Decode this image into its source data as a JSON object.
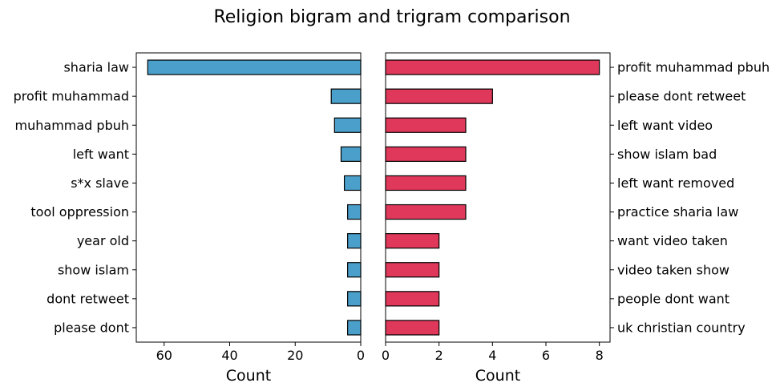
{
  "figure": {
    "title": "Religion bigram and trigram comparison"
  },
  "chart_data": [
    {
      "type": "bar",
      "orientation": "horizontal",
      "inverted_x": true,
      "categories": [
        "sharia law",
        "profit muhammad",
        "muhammad pbuh",
        "left want",
        "s*x slave",
        "tool oppression",
        "year old",
        "show islam",
        "dont retweet",
        "please dont"
      ],
      "values": [
        65,
        9,
        8,
        6,
        5,
        4,
        4,
        4,
        4,
        4
      ],
      "xlabel": "Count",
      "xlim": [
        68.5,
        0
      ],
      "xticks": [
        60,
        40,
        20,
        0
      ],
      "tick_labels": [
        "60",
        "40",
        "20",
        "0"
      ],
      "color": "#4aa0cb",
      "edge_color": "#000000",
      "grid": false
    },
    {
      "type": "bar",
      "orientation": "horizontal",
      "categories": [
        "profit muhammad pbuh",
        "please dont retweet",
        "left want video",
        "show islam bad",
        "left want removed",
        "practice sharia law",
        "want video taken",
        "video taken show",
        "people dont want",
        "uk christian country"
      ],
      "values": [
        8,
        4,
        3,
        3,
        3,
        3,
        2,
        2,
        2,
        2
      ],
      "xlabel": "Count",
      "xlim": [
        0,
        8.4
      ],
      "xticks": [
        0,
        2,
        4,
        6,
        8
      ],
      "tick_labels": [
        "0",
        "2",
        "4",
        "6",
        "8"
      ],
      "label_side": "right",
      "color": "#e0385a",
      "edge_color": "#000000",
      "grid": false
    }
  ]
}
